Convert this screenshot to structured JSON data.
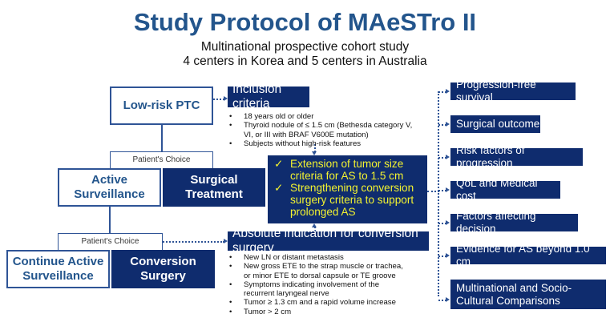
{
  "title": "Study Protocol of MAeSTro II",
  "subtitle_lines": [
    "Multinational prospective cohort study",
    "4 centers in Korea and 5 centers in Australia"
  ],
  "nodes": {
    "low_risk_ptc": "Low-risk PTC",
    "patients_choice_1": "Patient's Choice",
    "active_surveillance": "Active Surveillance",
    "surgical_treatment": "Surgical Treatment",
    "patients_choice_2": "Patient's Choice",
    "continue_active_surveillance": "Continue Active Surveillance",
    "conversion_surgery": "Conversion Surgery"
  },
  "inclusion": {
    "header": "Inclusion criteria",
    "items": [
      "18 years old or older",
      "Thyroid nodule of ≤ 1.5 cm (Bethesda category V, VI, or III with BRAF V600E mutation)",
      "Subjects without high-risk features"
    ]
  },
  "highlights": {
    "check_icon": "checkmark",
    "items": [
      "Extension of tumor size criteria for AS to 1.5 cm",
      "Strengthening conversion surgery criteria to support prolonged AS"
    ]
  },
  "absolute": {
    "header": "Absolute indication for conversion surgery",
    "items": [
      "New LN or distant metastasis",
      "New gross ETE to the strap muscle or trachea, or minor ETE to dorsal capsule or TE groove",
      "Symptoms indicating involvement of the recurrent laryngeal nerve",
      "Tumor ≥ 1.3 cm and a rapid volume increase",
      "Tumor > 2 cm"
    ]
  },
  "outcomes": [
    "Progression-free survival",
    "Surgical outcome",
    "Risk factors of progression",
    "QoL and Medical cost",
    "Factors affecting decision",
    "Evidence for AS beyond 1.0 cm",
    "Multinational and Socio-Cultural Comparisons"
  ],
  "colors": {
    "navy": "#0f2c6e",
    "title": "#23558c",
    "highlight_text": "#f2f230"
  }
}
